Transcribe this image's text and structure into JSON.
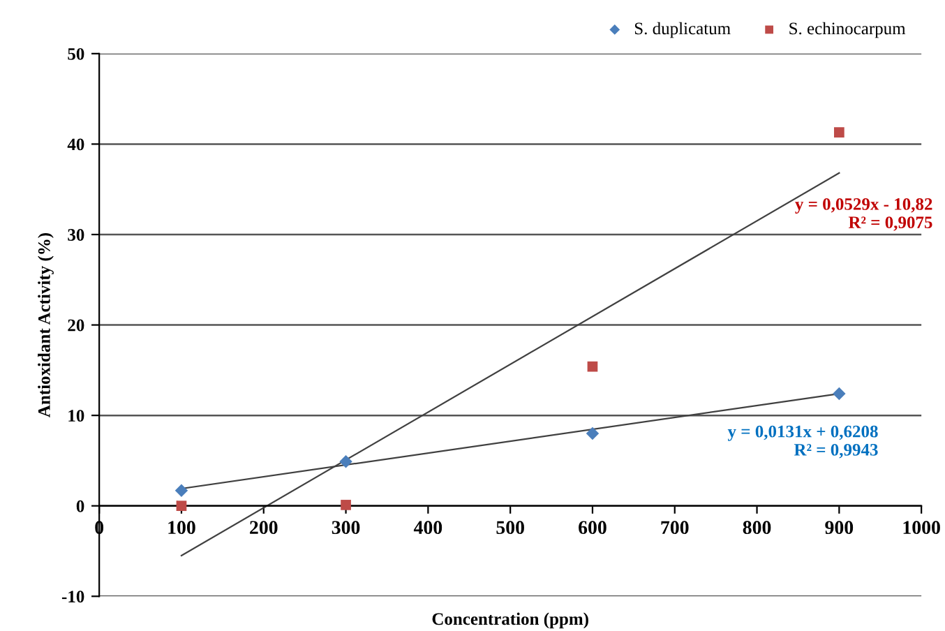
{
  "chart_data": {
    "type": "scatter",
    "xlabel": "Concentration (ppm)",
    "ylabel": "Antioxidant Activity (%)",
    "xlim": [
      0,
      1000
    ],
    "xticks": [
      0,
      100,
      200,
      300,
      400,
      500,
      600,
      700,
      800,
      900,
      1000
    ],
    "ylim": [
      -10,
      50
    ],
    "yticks": [
      -10,
      0,
      10,
      20,
      30,
      40,
      50
    ],
    "grid": "y",
    "legend": "top right",
    "series": [
      {
        "name": "S. duplicatum",
        "color": "#4a7ebb",
        "marker": "diamond",
        "x": [
          100,
          300,
          600,
          900
        ],
        "values": [
          1.7,
          4.9,
          8.0,
          12.4
        ]
      },
      {
        "name": "S. echinocarpum",
        "color": "#be4b48",
        "marker": "square",
        "x": [
          100,
          300,
          600,
          900
        ],
        "values": [
          0,
          0.1,
          15.4,
          41.3
        ]
      },
      {
        "type": "line",
        "color": "#404040",
        "marker": "none",
        "x": [
          100,
          900
        ],
        "values": [
          1.9,
          12.4
        ]
      },
      {
        "type": "line",
        "color": "#404040",
        "marker": "none",
        "x": [
          100,
          900
        ],
        "values": [
          -5.5,
          36.8
        ]
      }
    ],
    "annotations": [
      "y = 0,0529x - 10,82\nR² = 0,9075",
      "y = 0,0131x + 0,6208\nR² = 0,9943"
    ]
  }
}
